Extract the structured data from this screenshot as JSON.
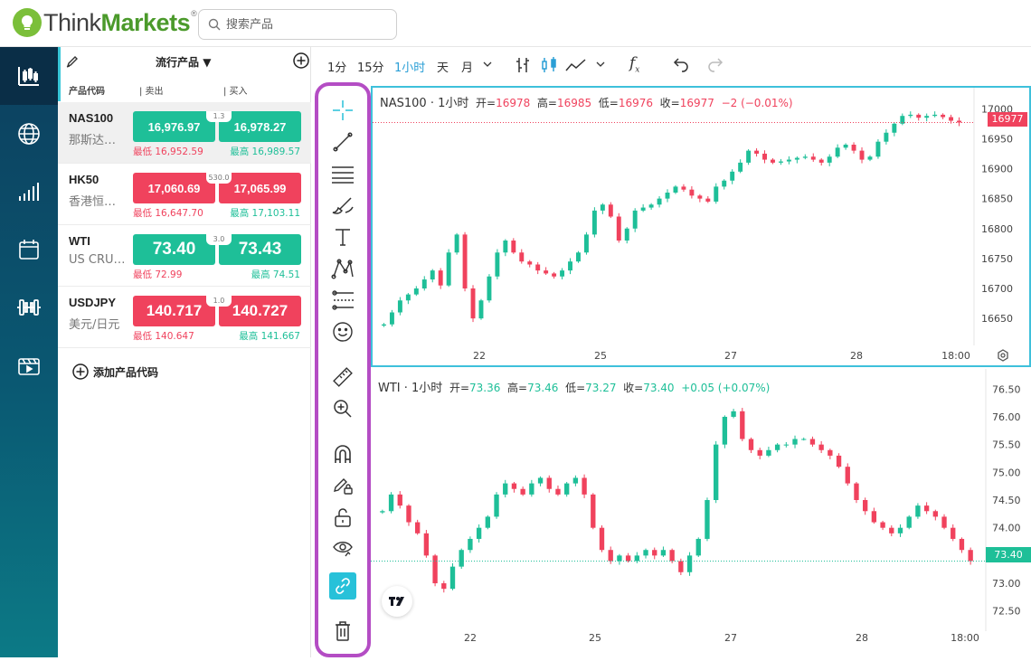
{
  "brand": {
    "name_part1": "Think",
    "name_part2": "Markets",
    "reg": "®",
    "accent": "#4b9a2b"
  },
  "search": {
    "placeholder": "搜索产品"
  },
  "nav": [
    {
      "icon": "candlestick-chart-icon"
    },
    {
      "icon": "globe-icon"
    },
    {
      "icon": "bar-signal-icon"
    },
    {
      "icon": "calendar-icon"
    },
    {
      "icon": "dumbbell-icon"
    },
    {
      "icon": "video-icon"
    }
  ],
  "watchlist": {
    "title": "流行产品",
    "columns": {
      "symbol": "产品代码",
      "sell": "| 卖出",
      "buy": "| 买入"
    },
    "rows": [
      {
        "symbol": "NAS100",
        "desc": "那斯达…",
        "sell": "16,976.97",
        "buy": "16,978.27",
        "sell_color": "green",
        "buy_color": "green",
        "spread": "1.3",
        "low": "最低 16,952.59",
        "high": "最高 16,989.57"
      },
      {
        "symbol": "HK50",
        "desc": "香港恒…",
        "sell": "17,060.69",
        "buy": "17,065.99",
        "sell_color": "red",
        "buy_color": "red",
        "spread": "530.0",
        "low": "最低 16,647.70",
        "high": "最高 17,103.11"
      },
      {
        "symbol": "WTI",
        "desc": "US CRU…",
        "sell": "73.40",
        "buy": "73.43",
        "sell_color": "green",
        "buy_color": "green",
        "spread": "3.0",
        "low": "最低 72.99",
        "high": "最高 74.51"
      },
      {
        "symbol": "USDJPY",
        "desc": "美元/日元",
        "sell": "140.717",
        "buy": "140.727",
        "sell_color": "red",
        "buy_color": "red",
        "spread": "1.0",
        "low": "最低 140.647",
        "high": "最高 141.667"
      }
    ],
    "add_label": "添加产品代码"
  },
  "toolbar": {
    "timeframes": [
      "1分",
      "15分",
      "1小时",
      "天",
      "月"
    ],
    "active_timeframe": "1小时",
    "fx_label": "f"
  },
  "charts": [
    {
      "title": "NAS100 · 1小时",
      "open_label": "开=",
      "open": "16978",
      "high_label": "高=",
      "high": "16985",
      "low_label": "低=",
      "low": "16976",
      "close_label": "收=",
      "close": "16977",
      "change": "−2 (−0.01%)",
      "change_color": "red",
      "last_label": "16977"
    },
    {
      "title": "WTI · 1小时",
      "open_label": "开=",
      "open": "73.36",
      "high_label": "高=",
      "high": "73.46",
      "low_label": "低=",
      "low": "73.27",
      "close_label": "收=",
      "close": "73.40",
      "change": "+0.05 (+0.07%)",
      "change_color": "green",
      "last_label": "73.40"
    }
  ],
  "chart_data": [
    {
      "type": "candlestick",
      "title": "NAS100 · 1小时",
      "y_ticks": [
        17000,
        16950,
        16900,
        16850,
        16800,
        16750,
        16700,
        16650
      ],
      "x_ticks": [
        "22",
        "25",
        "27",
        "28",
        "18:00"
      ],
      "ylim": [
        16620,
        17020
      ],
      "last": 16977,
      "series": [
        16640,
        16660,
        16680,
        16690,
        16700,
        16715,
        16730,
        16705,
        16760,
        16790,
        16700,
        16650,
        16680,
        16720,
        16760,
        16780,
        16760,
        16745,
        16740,
        16730,
        16725,
        16720,
        16730,
        16745,
        16760,
        16790,
        16830,
        16840,
        16820,
        16780,
        16800,
        16830,
        16835,
        16840,
        16850,
        16860,
        16870,
        16865,
        16855,
        16850,
        16845,
        16870,
        16880,
        16895,
        16910,
        16930,
        16925,
        16915,
        16910,
        16912,
        16915,
        16918,
        16920,
        16915,
        16910,
        16920,
        16935,
        16940,
        16930,
        16915,
        16920,
        16945,
        16960,
        16975,
        16988,
        16990,
        16985,
        16988,
        16990,
        16986,
        16980,
        16977
      ]
    },
    {
      "type": "candlestick",
      "title": "WTI · 1小时",
      "y_ticks": [
        76.5,
        76.0,
        75.5,
        75.0,
        74.5,
        74.0,
        73.5,
        73.0,
        72.5
      ],
      "x_ticks": [
        "22",
        "25",
        "27",
        "28",
        "18:00"
      ],
      "ylim": [
        72.3,
        76.7
      ],
      "last": 73.4,
      "series": [
        74.3,
        74.6,
        74.4,
        74.1,
        73.9,
        73.5,
        73.0,
        72.9,
        73.3,
        73.6,
        73.8,
        74.0,
        74.2,
        74.6,
        74.8,
        74.7,
        74.6,
        74.8,
        74.9,
        74.7,
        74.6,
        74.8,
        74.9,
        74.6,
        74.0,
        73.6,
        73.4,
        73.5,
        73.4,
        73.5,
        73.6,
        73.5,
        73.6,
        73.4,
        73.2,
        73.5,
        73.8,
        74.5,
        75.5,
        76.0,
        76.1,
        75.6,
        75.4,
        75.3,
        75.4,
        75.5,
        75.5,
        75.6,
        75.6,
        75.5,
        75.4,
        75.3,
        75.1,
        74.8,
        74.5,
        74.3,
        74.1,
        74.0,
        73.9,
        74.0,
        74.2,
        74.4,
        74.3,
        74.2,
        74.0,
        73.8,
        73.6,
        73.4
      ]
    }
  ]
}
